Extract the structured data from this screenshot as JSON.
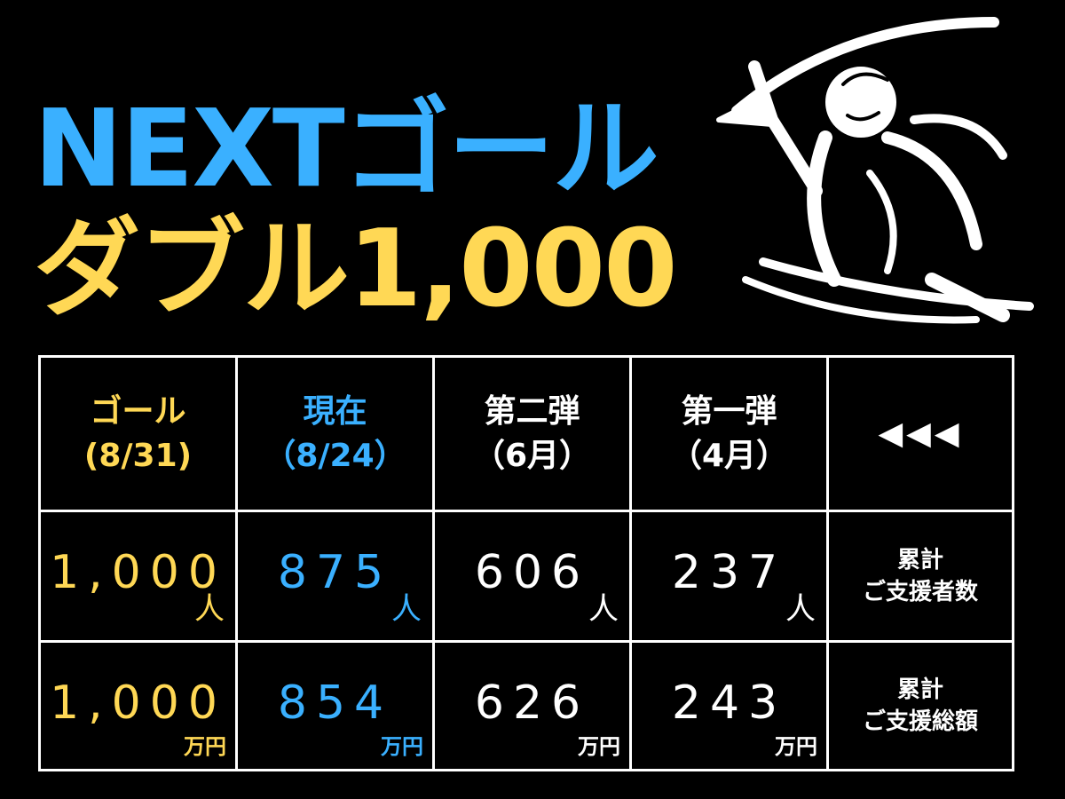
{
  "title": {
    "line1": "NEXTゴール",
    "line2": "ダブル1,000"
  },
  "colors": {
    "goal": "#ffd855",
    "current": "#3ab0ff",
    "text": "#ffffff",
    "background": "#000000"
  },
  "table": {
    "headers": [
      {
        "line1": "ゴール",
        "line2": "(8/31)"
      },
      {
        "line1": "現在",
        "line2": "（8/24）"
      },
      {
        "line1": "第二弾",
        "line2": "（6月）"
      },
      {
        "line1": "第一弾",
        "line2": "（4月）"
      },
      {
        "icon": "triple-left-arrow-icon",
        "text": "◀◀◀"
      }
    ],
    "supporters": {
      "values": [
        "1,000",
        "875",
        "606",
        "237"
      ],
      "unit": "人",
      "label_line1": "累計",
      "label_line2": "ご支援者数"
    },
    "amount": {
      "values": [
        "1,000",
        "854",
        "626",
        "243"
      ],
      "unit": "万円",
      "label_line1": "累計",
      "label_line2": "ご支援総額"
    }
  }
}
